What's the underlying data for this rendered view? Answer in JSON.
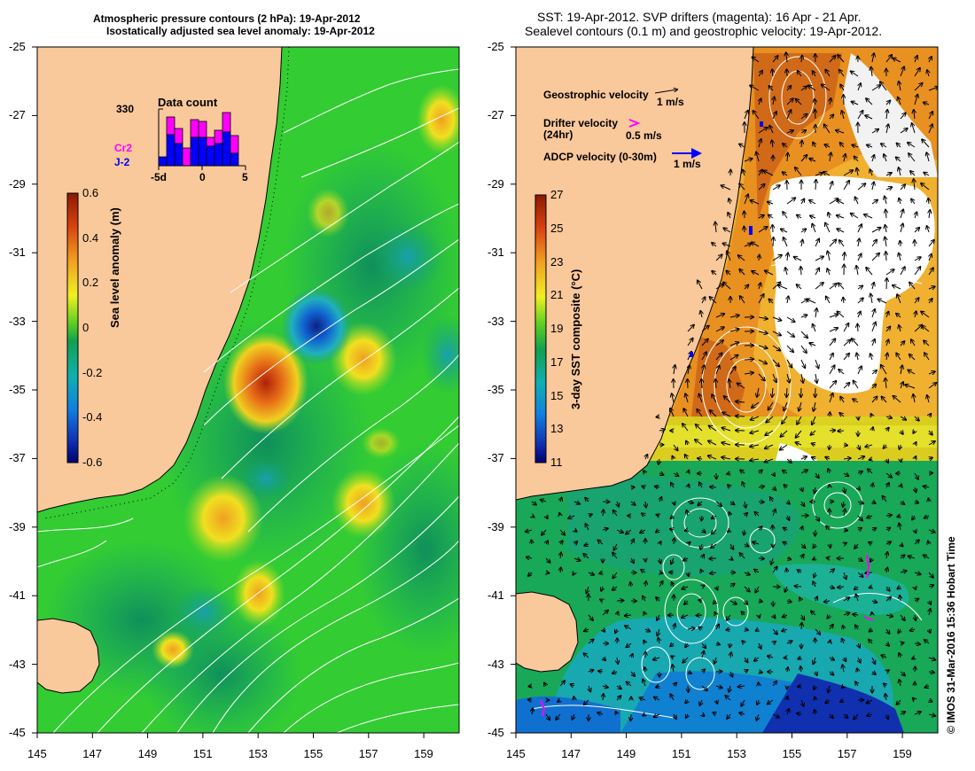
{
  "left_panel": {
    "title_line1": "Atmospheric pressure contours (2 hPa): 19-Apr-2012",
    "title_line2": "Isostatically adjusted sea level anomaly: 19-Apr-2012",
    "colorbar_label": "Sea level anomaly (m)",
    "colorbar_ticks": [
      "0.6",
      "0.4",
      "0.2",
      "0",
      "-0.2",
      "-0.4",
      "-0.6"
    ],
    "inset": {
      "title": "Data count",
      "max_value": "330",
      "series": [
        {
          "name": "Cr2",
          "color": "#ff00ff"
        },
        {
          "name": "J-2",
          "color": "#0000ff"
        }
      ],
      "xticks": [
        "-5d",
        "0",
        "5"
      ]
    }
  },
  "right_panel": {
    "title_line1": "SST: 19-Apr-2012. SVP drifters (magenta): 16 Apr - 21 Apr.",
    "title_line2": "Sealevel contours (0.1 m) and geostrophic velocity: 19-Apr-2012.",
    "colorbar_label": "3-day SST composite (°C)",
    "colorbar_ticks": [
      "27",
      "25",
      "23",
      "21",
      "19",
      "17",
      "15",
      "13",
      "11"
    ],
    "legend": {
      "geo_label": "Geostrophic velocity",
      "geo_scale": "1 m/s",
      "drifter_label": "Drifter velocity",
      "drifter_sub": "(24hr)",
      "drifter_scale": "0.5 m/s",
      "drifter_color": "#ff00ff",
      "adcp_label": "ADCP velocity (0-30m)",
      "adcp_scale": "1 m/s",
      "adcp_color": "#0000ff"
    }
  },
  "axes": {
    "lat_ticks": [
      "-25",
      "-27",
      "-29",
      "-31",
      "-33",
      "-35",
      "-37",
      "-39",
      "-41",
      "-43",
      "-45"
    ],
    "lon_ticks": [
      "145",
      "147",
      "149",
      "151",
      "153",
      "155",
      "157",
      "159"
    ]
  },
  "credit": "© IMOS 31-Mar-2016 15:36 Hobart Time",
  "colors": {
    "land": "#f9c89b",
    "ocean_green": "#33cc33",
    "ocean_teal": "#10a070",
    "sst_warm": "#e89020",
    "sst_cool": "#1aa6c8"
  }
}
